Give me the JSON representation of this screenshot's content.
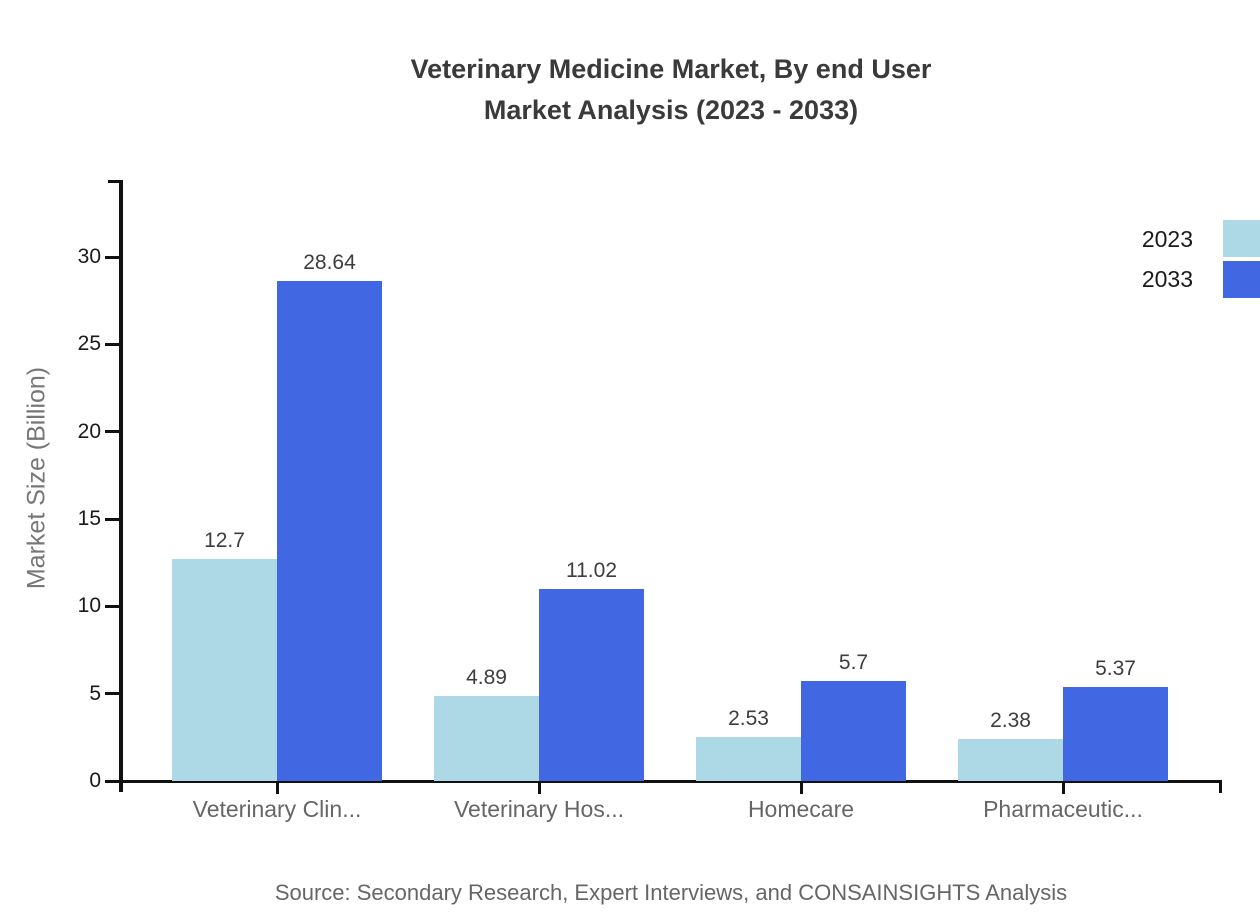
{
  "chart": {
    "title_line1": "Veterinary Medicine Market, By end User",
    "title_line2": "Market Analysis (2023 - 2033)",
    "y_axis_label": "Market Size (Billion)",
    "source": "Source: Secondary Research, Expert Interviews, and CONSAINSIGHTS Analysis"
  },
  "chart_data": {
    "type": "bar",
    "title": "Veterinary Medicine Market, By end User Market Analysis (2023 - 2033)",
    "xlabel": "",
    "ylabel": "Market Size (Billion)",
    "categories": [
      "Veterinary Clin...",
      "Veterinary Hos...",
      "Homecare",
      "Pharmaceutic..."
    ],
    "series": [
      {
        "name": "2023",
        "color": "#ADD8E6",
        "values": [
          12.7,
          4.89,
          2.53,
          2.38
        ]
      },
      {
        "name": "2033",
        "color": "#4267E2",
        "values": [
          28.64,
          11.02,
          5.7,
          5.37
        ]
      }
    ],
    "value_labels": {
      "2023": [
        "12.7",
        "4.89",
        "2.53",
        "2.38"
      ],
      "2033": [
        "28.64",
        "11.02",
        "5.7",
        "5.37"
      ]
    },
    "y_ticks": [
      0,
      5,
      10,
      15,
      20,
      25,
      30
    ],
    "ylim": [
      0,
      34.4
    ],
    "grid": false,
    "legend_position": "top-right"
  },
  "palette": {
    "axis": "#111111",
    "tick_label": "#1a1a1a",
    "category_label": "#666666",
    "value_label": "#3d3d3d",
    "legend_label": "#1a1a1a"
  }
}
